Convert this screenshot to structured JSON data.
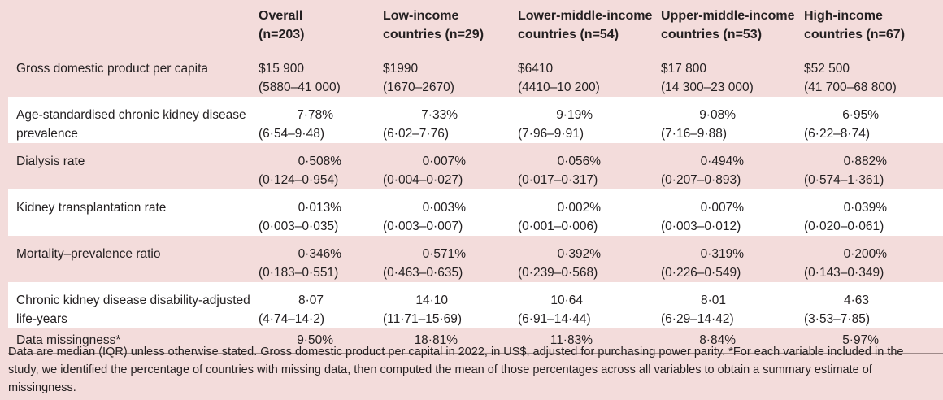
{
  "headers": [
    {
      "line1": "",
      "line2": ""
    },
    {
      "line1": "Overall",
      "line2": "(n=203)"
    },
    {
      "line1": "Low-income",
      "line2": "countries (n=29)"
    },
    {
      "line1": "Lower-middle-income",
      "line2": "countries (n=54)"
    },
    {
      "line1": "Upper-middle-income",
      "line2": "countries (n=53)"
    },
    {
      "line1": "High-income",
      "line2": "countries (n=67)"
    }
  ],
  "rows": [
    {
      "label": "Gross domestic product per capita",
      "cells": [
        {
          "value": "$15 900",
          "range": "(5880–41 000)"
        },
        {
          "value": "$1990",
          "range": "(1670–2670)"
        },
        {
          "value": "$6410",
          "range": "(4410–10 200)"
        },
        {
          "value": "$17 800",
          "range": "(14 300–23 000)"
        },
        {
          "value": "$52 500",
          "range": "(41 700–68 800)"
        }
      ]
    },
    {
      "label": "Age-standardised chronic kidney disease prevalence",
      "cells": [
        {
          "value": "7·78%",
          "range": "(6·54–9·48)"
        },
        {
          "value": "7·33%",
          "range": "(6·02–7·76)"
        },
        {
          "value": "9·19%",
          "range": "(7·96–9·91)"
        },
        {
          "value": "9·08%",
          "range": "(7·16–9·88)"
        },
        {
          "value": "6·95%",
          "range": "(6·22–8·74)"
        }
      ]
    },
    {
      "label": "Dialysis rate",
      "cells": [
        {
          "value": "0·508%",
          "range": "(0·124–0·954)"
        },
        {
          "value": "0·007%",
          "range": "(0·004–0·027)"
        },
        {
          "value": "0·056%",
          "range": "(0·017–0·317)"
        },
        {
          "value": "0·494%",
          "range": "(0·207–0·893)"
        },
        {
          "value": "0·882%",
          "range": "(0·574–1·361)"
        }
      ]
    },
    {
      "label": "Kidney transplantation rate",
      "cells": [
        {
          "value": "0·013%",
          "range": "(0·003–0·035)"
        },
        {
          "value": "0·003%",
          "range": "(0·003–0·007)"
        },
        {
          "value": "0·002%",
          "range": "(0·001–0·006)"
        },
        {
          "value": "0·007%",
          "range": "(0·003–0·012)"
        },
        {
          "value": "0·039%",
          "range": "(0·020–0·061)"
        }
      ]
    },
    {
      "label": "Mortality–prevalence ratio",
      "cells": [
        {
          "value": "0·346%",
          "range": "(0·183–0·551)"
        },
        {
          "value": "0·571%",
          "range": "(0·463–0·635)"
        },
        {
          "value": "0·392%",
          "range": "(0·239–0·568)"
        },
        {
          "value": "0·319%",
          "range": "(0·226–0·549)"
        },
        {
          "value": "0·200%",
          "range": "(0·143–0·349)"
        }
      ]
    },
    {
      "label": "Chronic kidney disease disability-adjusted life-years",
      "cells": [
        {
          "value": "8·07",
          "range": "(4·74–14·2)"
        },
        {
          "value": "14·10",
          "range": "(11·71–15·69)"
        },
        {
          "value": "10·64",
          "range": "(6·91–14·44)"
        },
        {
          "value": "8·01",
          "range": "(6·29–14·42)"
        },
        {
          "value": "4·63",
          "range": "(3·53–7·85)"
        }
      ]
    },
    {
      "label": "Data missingness*",
      "cells": [
        {
          "value": "9·50%",
          "range": ""
        },
        {
          "value": "18·81%",
          "range": ""
        },
        {
          "value": "11·83%",
          "range": ""
        },
        {
          "value": "8·84%",
          "range": ""
        },
        {
          "value": "5·97%",
          "range": ""
        }
      ]
    }
  ],
  "footnote": "Data are median (IQR) unless otherwise stated. Gross domestic product per capital in 2022, in US$, adjusted for purchasing power parity. *For each variable included in the study, we identified the percentage of countries with missing data, then computed the mean of those percentages across all variables to obtain a summary estimate of missingness."
}
